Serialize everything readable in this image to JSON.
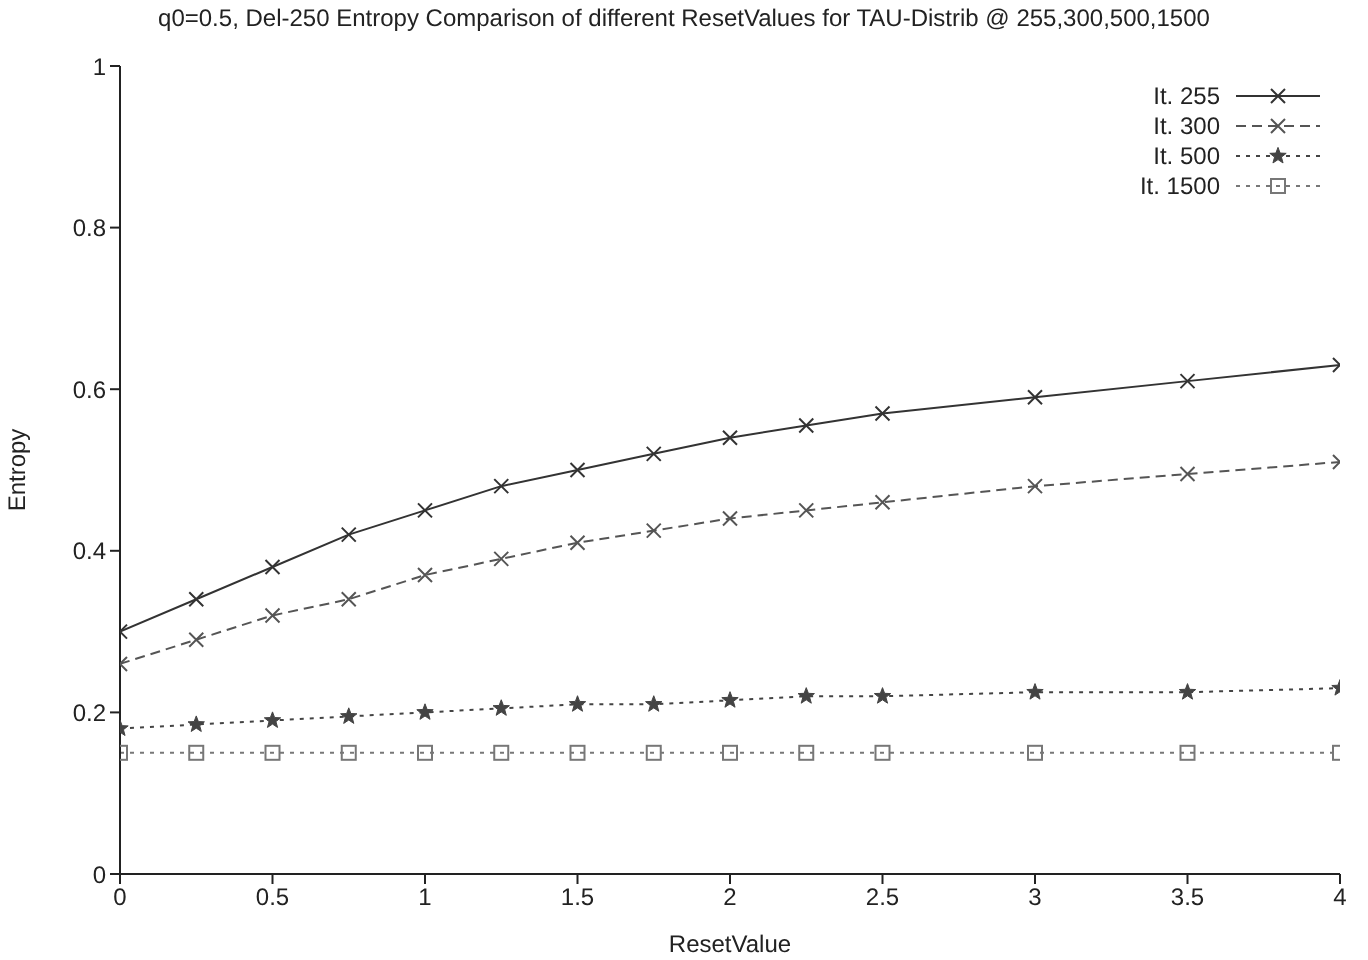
{
  "chart_data": {
    "type": "line",
    "title": "q0=0.5, Del-250 Entropy Comparison of different ResetValues for TAU-Distrib @ 255,300,500,1500",
    "xlabel": "ResetValue",
    "ylabel": "Entropy",
    "x": [
      0,
      0.25,
      0.5,
      0.75,
      1,
      1.25,
      1.5,
      1.75,
      2,
      2.25,
      2.5,
      3,
      3.5,
      4
    ],
    "series": [
      {
        "name": "It. 255",
        "color": "#333333",
        "marker": "cross",
        "line_style": "solid",
        "values": [
          0.3,
          0.34,
          0.38,
          0.42,
          0.45,
          0.48,
          0.5,
          0.52,
          0.54,
          0.555,
          0.57,
          0.59,
          0.61,
          0.63
        ]
      },
      {
        "name": "It. 300",
        "color": "#555555",
        "marker": "cross",
        "line_style": "dashed",
        "values": [
          0.26,
          0.29,
          0.32,
          0.34,
          0.37,
          0.39,
          0.41,
          0.425,
          0.44,
          0.45,
          0.46,
          0.48,
          0.495,
          0.51
        ]
      },
      {
        "name": "It. 500",
        "color": "#444444",
        "marker": "star",
        "line_style": "dotted",
        "values": [
          0.18,
          0.185,
          0.19,
          0.195,
          0.2,
          0.205,
          0.21,
          0.21,
          0.215,
          0.22,
          0.22,
          0.225,
          0.225,
          0.23
        ]
      },
      {
        "name": "It. 1500",
        "color": "#777777",
        "marker": "square",
        "line_style": "dotted",
        "values": [
          0.15,
          0.15,
          0.15,
          0.15,
          0.15,
          0.15,
          0.15,
          0.15,
          0.15,
          0.15,
          0.15,
          0.15,
          0.15,
          0.15
        ]
      }
    ],
    "xlim": [
      0,
      4
    ],
    "xticks": [
      0,
      0.5,
      1,
      1.5,
      2,
      2.5,
      3,
      3.5,
      4
    ],
    "ylim": [
      0,
      1
    ],
    "yticks": [
      0,
      0.2,
      0.4,
      0.6,
      0.8,
      1
    ],
    "grid": false,
    "legend": "top right"
  }
}
